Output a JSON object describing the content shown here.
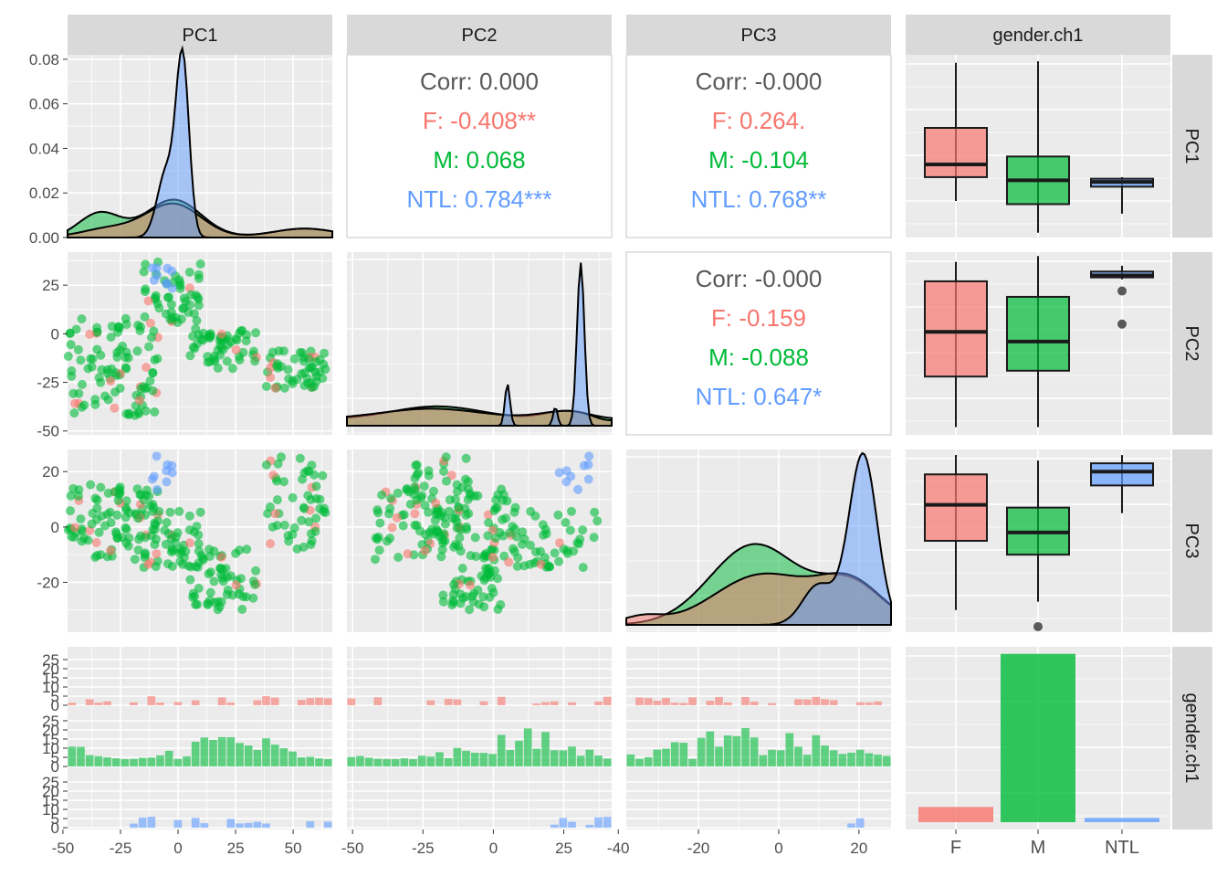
{
  "chart_data": {
    "type": "scatterplot-matrix",
    "variables": [
      "PC1",
      "PC2",
      "PC3",
      "gender.ch1"
    ],
    "groups": [
      "F",
      "M",
      "NTL"
    ],
    "colors": {
      "F": "#F8766D",
      "M": "#00BA38",
      "NTL": "#619CFF",
      "overall": "#595959"
    },
    "axes": {
      "PC1": {
        "range": [
          -48,
          67
        ],
        "ticks": [
          -50,
          -25,
          0,
          25,
          50
        ]
      },
      "PC2": {
        "range": [
          -52,
          42
        ],
        "ticks": [
          -50,
          -25,
          0,
          25
        ]
      },
      "PC3": {
        "range": [
          -38,
          28
        ],
        "ticks": [
          -40,
          -20,
          0,
          20
        ],
        "ticks_row": [
          -20,
          0,
          20
        ]
      },
      "density_PC1": {
        "range": [
          0,
          0.082
        ],
        "ticks": [
          0.0,
          0.02,
          0.04,
          0.06,
          0.08
        ],
        "tick_labels": [
          "0.00",
          "0.02",
          "0.04",
          "0.06",
          "0.08"
        ]
      },
      "count": {
        "ticks": [
          0,
          5,
          10,
          15,
          20,
          25
        ],
        "tick_labels": [
          "0",
          "5",
          "10",
          "15",
          "20",
          "25"
        ]
      }
    },
    "correlations": [
      {
        "pair": "PC1-PC2",
        "lines": [
          {
            "group": "overall",
            "text": "Corr: 0.000"
          },
          {
            "group": "F",
            "text": "F: -0.408**"
          },
          {
            "group": "M",
            "text": "M: 0.068"
          },
          {
            "group": "NTL",
            "text": "NTL: 0.784***"
          }
        ]
      },
      {
        "pair": "PC1-PC3",
        "lines": [
          {
            "group": "overall",
            "text": "Corr: -0.000"
          },
          {
            "group": "F",
            "text": "F: 0.264."
          },
          {
            "group": "M",
            "text": "M: -0.104"
          },
          {
            "group": "NTL",
            "text": "NTL: 0.768**"
          }
        ]
      },
      {
        "pair": "PC2-PC3",
        "lines": [
          {
            "group": "overall",
            "text": "Corr: -0.000"
          },
          {
            "group": "F",
            "text": "F: -0.159"
          },
          {
            "group": "M",
            "text": "M: -0.088"
          },
          {
            "group": "NTL",
            "text": "NTL: 0.647*"
          }
        ]
      }
    ],
    "boxplots": {
      "PC1": {
        "F": [
          -25,
          -10,
          -2,
          21,
          62
        ],
        "M": [
          -45,
          -27,
          -12,
          3,
          63
        ],
        "NTL": [
          -33,
          -16,
          -13,
          -11,
          -10
        ]
      },
      "PC2": {
        "F": [
          -48,
          -22,
          1,
          27,
          37
        ],
        "M": [
          -48,
          -19,
          -4,
          19,
          40
        ],
        "NTL": [
          28,
          29,
          30,
          32,
          35
        ]
      },
      "PC3": {
        "F": [
          -30,
          -5,
          8,
          19,
          26
        ],
        "M": [
          -27,
          -10,
          -2,
          7,
          24
        ],
        "NTL": [
          5,
          15,
          20,
          23,
          26
        ]
      }
    },
    "boxplot_outliers": {
      "PC2": {
        "NTL": [
          22,
          5
        ]
      },
      "PC3": {
        "M": [
          -36
        ]
      }
    },
    "bar_counts": {
      "F": 29,
      "M": 320,
      "NTL": 8
    },
    "diag_density_pc1_peak": 0.078
  }
}
